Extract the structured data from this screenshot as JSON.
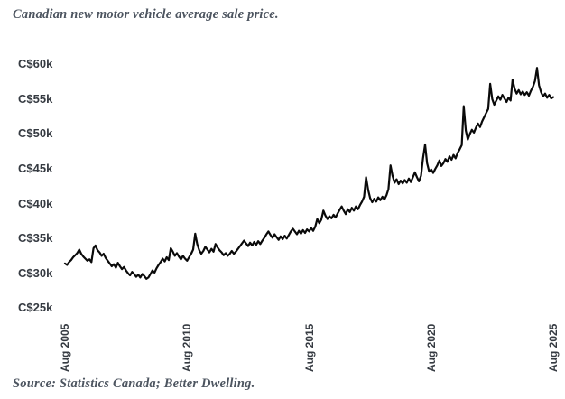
{
  "title": "Canadian new motor vehicle average sale price.",
  "source": "Source: Statistics Canada; Better Dwelling.",
  "colors": {
    "line": "#0a0a0a",
    "axis_label": "#363b42",
    "caption_text": "#4d5560",
    "background": "#ffffff"
  },
  "chart_data": {
    "type": "line",
    "title": "Canadian new motor vehicle average sale price.",
    "unit": "C$ thousands",
    "x_start": "2005-08",
    "x_interval": "monthly",
    "x_tick_labels": [
      "Aug 2005",
      "Aug 2010",
      "Aug 2015",
      "Aug 2020",
      "Aug 2025"
    ],
    "x_tick_month_index": [
      0,
      60,
      120,
      180,
      240
    ],
    "y_tick_labels": [
      "C$60k",
      "C$55k",
      "C$50k",
      "C$45k",
      "C$40k",
      "C$35k",
      "C$30k",
      "C$25k"
    ],
    "y_ticks_k": [
      60,
      55,
      50,
      45,
      40,
      35,
      30,
      25
    ],
    "ylim_k": [
      25,
      60
    ],
    "grid": false,
    "legend": false,
    "series": [
      {
        "name": "Average new motor vehicle sale price (C$k)",
        "values": [
          31.4,
          31.2,
          31.6,
          31.9,
          32.3,
          32.6,
          32.9,
          33.4,
          32.8,
          32.4,
          32.1,
          31.8,
          32.0,
          31.6,
          33.6,
          34.0,
          33.3,
          33.0,
          32.5,
          32.8,
          32.2,
          31.8,
          31.4,
          31.0,
          31.3,
          30.8,
          31.5,
          31.0,
          30.6,
          30.9,
          30.4,
          30.0,
          29.7,
          30.2,
          29.9,
          29.5,
          29.8,
          29.4,
          29.9,
          29.6,
          29.2,
          29.4,
          29.9,
          30.4,
          30.1,
          30.7,
          31.2,
          31.6,
          32.1,
          31.7,
          32.3,
          31.9,
          33.6,
          33.1,
          32.5,
          32.9,
          32.4,
          32.0,
          32.5,
          32.1,
          31.8,
          32.3,
          32.8,
          33.4,
          35.7,
          34.2,
          33.3,
          32.8,
          33.2,
          33.8,
          33.4,
          33.0,
          33.5,
          33.1,
          34.2,
          33.7,
          33.3,
          33.0,
          32.6,
          32.9,
          32.5,
          32.8,
          33.2,
          32.8,
          33.1,
          33.5,
          33.9,
          34.3,
          34.7,
          34.3,
          33.9,
          34.4,
          34.0,
          34.5,
          34.1,
          34.6,
          34.2,
          34.7,
          35.1,
          35.6,
          36.0,
          35.5,
          35.1,
          35.6,
          35.2,
          34.8,
          35.3,
          34.9,
          35.4,
          35.0,
          35.5,
          36.0,
          36.4,
          36.0,
          35.6,
          36.1,
          35.7,
          36.2,
          35.8,
          36.3,
          36.0,
          36.5,
          36.1,
          36.7,
          37.8,
          37.2,
          37.7,
          39.0,
          38.3,
          37.8,
          38.2,
          37.9,
          38.4,
          38.0,
          38.6,
          39.1,
          39.6,
          39.0,
          38.5,
          39.2,
          38.8,
          39.4,
          39.0,
          39.6,
          39.2,
          39.8,
          40.3,
          41.0,
          43.8,
          42.0,
          40.8,
          40.2,
          40.7,
          40.3,
          40.9,
          40.5,
          41.0,
          40.6,
          41.2,
          42.1,
          45.5,
          44.0,
          43.0,
          43.5,
          42.8,
          43.3,
          42.9,
          43.4,
          43.0,
          43.6,
          43.1,
          43.8,
          44.5,
          43.8,
          43.2,
          44.0,
          46.5,
          48.5,
          45.8,
          44.6,
          44.9,
          44.4,
          45.0,
          45.5,
          46.2,
          45.4,
          45.8,
          46.4,
          46.0,
          46.8,
          46.3,
          47.0,
          46.5,
          47.3,
          47.8,
          48.4,
          54.0,
          50.5,
          49.2,
          50.0,
          50.6,
          50.2,
          50.9,
          51.5,
          51.0,
          51.8,
          52.4,
          53.0,
          53.6,
          57.2,
          55.0,
          54.2,
          54.8,
          55.4,
          54.9,
          55.6,
          55.1,
          54.6,
          55.2,
          54.8,
          57.8,
          56.5,
          55.8,
          56.3,
          55.7,
          56.1,
          55.6,
          56.0,
          55.5,
          56.2,
          56.8,
          57.6,
          59.5,
          57.0,
          56.0,
          55.4,
          55.8,
          55.2,
          55.6,
          55.1,
          55.3
        ]
      }
    ]
  }
}
